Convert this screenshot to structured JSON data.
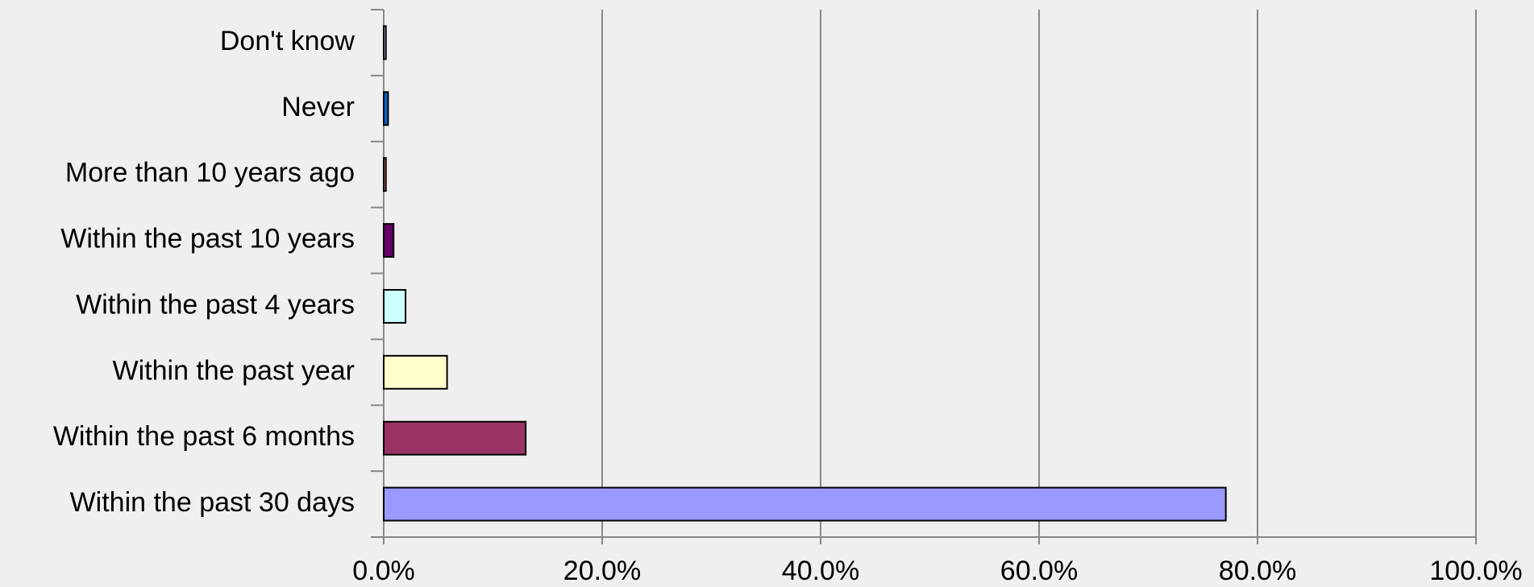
{
  "chart_data": {
    "type": "bar",
    "orientation": "horizontal",
    "categories": [
      "Don't know",
      "Never",
      "More than 10 years ago",
      "Within the past 10 years",
      "Within the past 4 years",
      "Within the past year",
      "Within the past 6 months",
      "Within the past 30 days"
    ],
    "values": [
      0.2,
      0.4,
      0.2,
      0.9,
      2.0,
      5.8,
      13.0,
      77.1
    ],
    "colors": [
      "#ccccff",
      "#0066cc",
      "#ff8080",
      "#660066",
      "#ccffff",
      "#ffffcc",
      "#993366",
      "#9999ff"
    ],
    "xlim": [
      0,
      100
    ],
    "xticks": [
      {
        "value": 0,
        "label": "0.0%"
      },
      {
        "value": 20,
        "label": "20.0%"
      },
      {
        "value": 40,
        "label": "40.0%"
      },
      {
        "value": 60,
        "label": "60.0%"
      },
      {
        "value": 80,
        "label": "80.0%"
      },
      {
        "value": 100,
        "label": "100.0%"
      }
    ],
    "grid": true
  }
}
